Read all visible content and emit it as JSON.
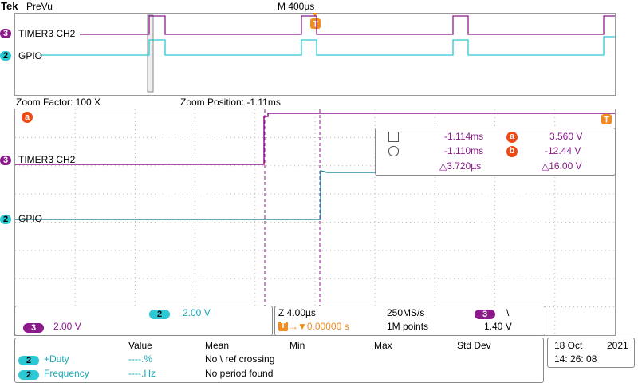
{
  "header": {
    "brand": "Tek",
    "mode": "PreVu",
    "timebase": "M 400µs",
    "trigger_marker": "T"
  },
  "overview": {
    "ch3_label": "TIMER3 CH2",
    "ch2_label": "GPIO",
    "ch3_num": "3",
    "ch2_num": "2"
  },
  "zoom": {
    "factor": "Zoom Factor: 100 X",
    "position": "Zoom Position: -1.11ms",
    "ch3_label": "TIMER3 CH2",
    "ch2_label": "GPIO",
    "cursor_marker": "a"
  },
  "cursors": {
    "row1_value": "-1.114ms",
    "row1_badge": "a",
    "row1_volt": "3.560 V",
    "row2_value": "-1.110ms",
    "row2_badge": "b",
    "row2_volt": "-12.44 V",
    "delta_time": "△3.720µs",
    "delta_volt": "△16.00 V"
  },
  "scale": {
    "ch2_num": "2",
    "ch2_volts": "2.00 V",
    "ch3_num": "3",
    "ch3_volts": "2.00 V"
  },
  "acq": {
    "zoom_scale": "Z 4.00µs",
    "sample_rate": "250MS/s",
    "trig_source": "3",
    "trig_slope": "\\",
    "trig_pos": "▼0.00000 s",
    "record": "1M points",
    "trig_level": "1.40 V"
  },
  "measurements": {
    "headers": [
      "Value",
      "Mean",
      "Min",
      "Max",
      "Std Dev"
    ],
    "rows": [
      {
        "ch": "2",
        "name": "+Duty",
        "value": "----.%",
        "status": "No \\ ref crossing"
      },
      {
        "ch": "2",
        "name": "Frequency",
        "value": "----.Hz",
        "status": "No period found"
      }
    ]
  },
  "datetime": {
    "date": "18 Oct",
    "year": "2021",
    "time": "14: 26: 08"
  },
  "colors": {
    "ch2": "#2cc8d4",
    "ch3": "#8b1a8b",
    "trigger": "#f08c1e",
    "background": "#ffffff"
  }
}
